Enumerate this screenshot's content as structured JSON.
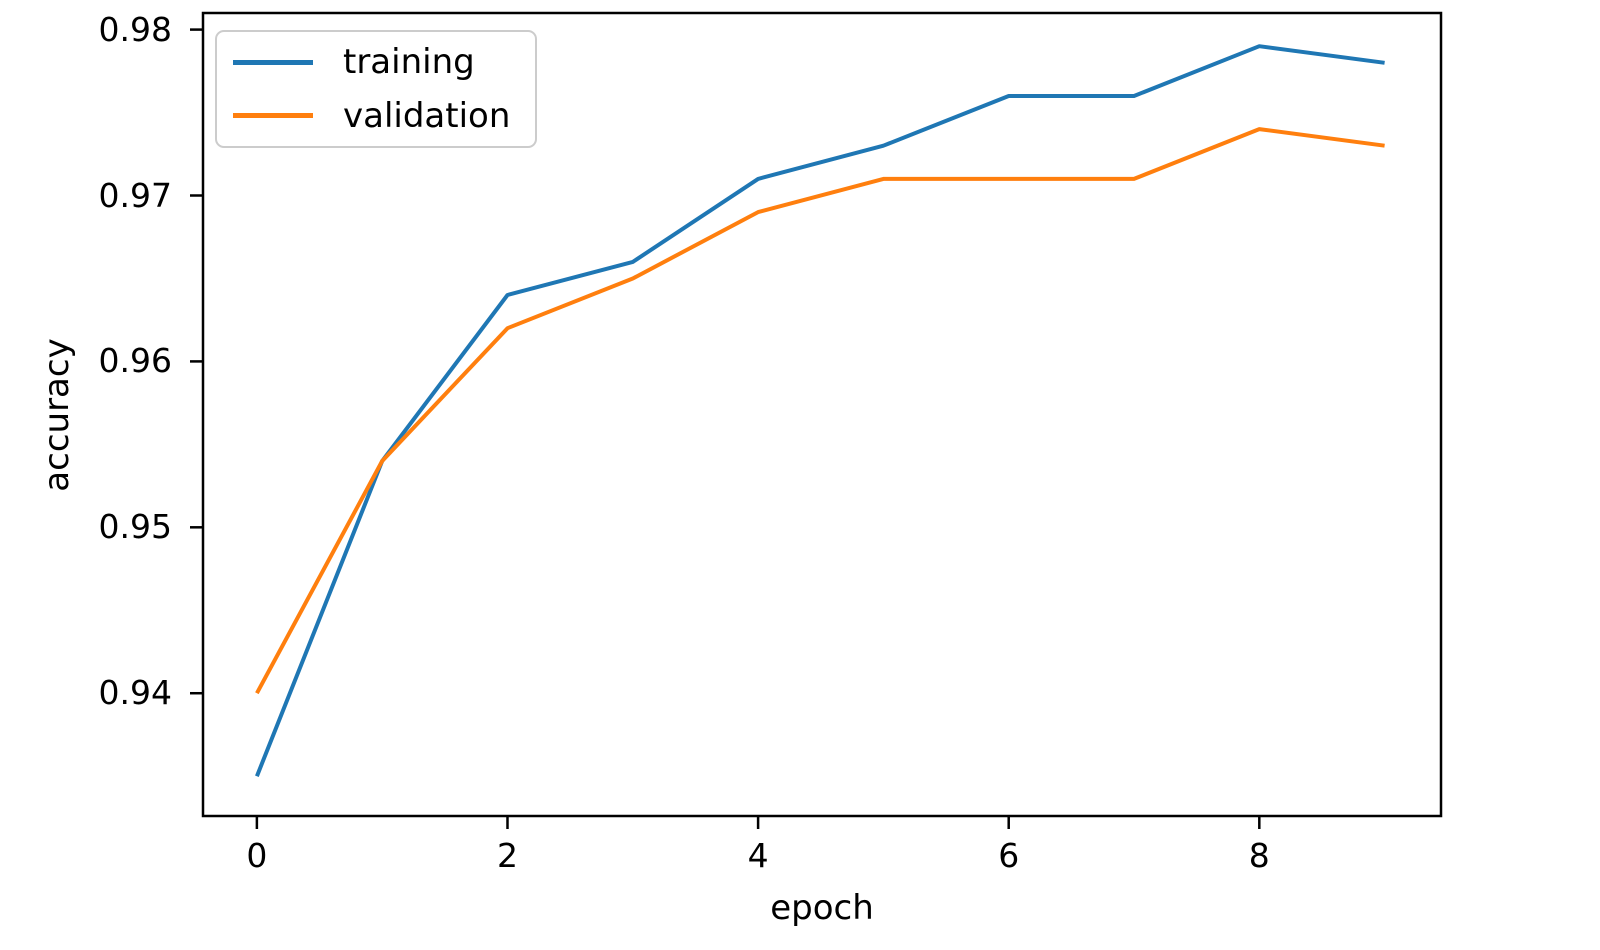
{
  "figure": {
    "background": "#ffffff",
    "axes_edge_color": "#000000"
  },
  "chart_data": {
    "type": "line",
    "title": "",
    "xlabel": "epoch",
    "ylabel": "accuracy",
    "x": [
      0,
      1,
      2,
      3,
      4,
      5,
      6,
      7,
      8,
      9
    ],
    "series": [
      {
        "name": "training",
        "color": "#1f77b4",
        "values": [
          0.935,
          0.954,
          0.964,
          0.966,
          0.971,
          0.973,
          0.976,
          0.976,
          0.979,
          0.978
        ]
      },
      {
        "name": "validation",
        "color": "#ff7f0e",
        "values": [
          0.94,
          0.954,
          0.962,
          0.965,
          0.969,
          0.971,
          0.971,
          0.971,
          0.974,
          0.973
        ]
      }
    ],
    "x_ticks": [
      0,
      2,
      4,
      6,
      8
    ],
    "x_tick_labels": [
      "0",
      "2",
      "4",
      "6",
      "8"
    ],
    "y_ticks": [
      0.94,
      0.95,
      0.96,
      0.97,
      0.98
    ],
    "y_tick_labels": [
      "0.94",
      "0.95",
      "0.96",
      "0.97",
      "0.98"
    ],
    "xlim": [
      -0.43,
      9.45
    ],
    "ylim": [
      0.9326,
      0.981
    ],
    "grid": false,
    "legend": {
      "position": "upper left",
      "entries": [
        "training",
        "validation"
      ]
    }
  }
}
